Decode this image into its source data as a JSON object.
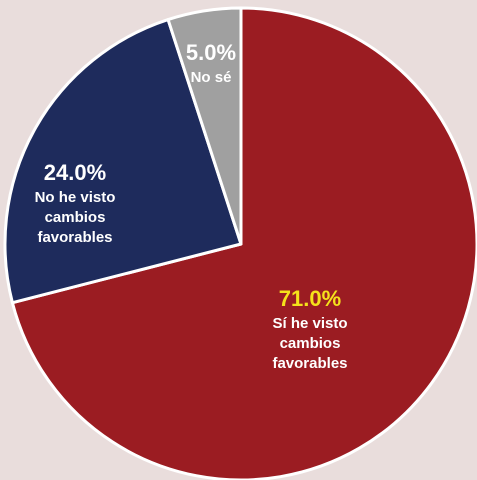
{
  "colors": {
    "background": "#e9dddc",
    "slice_border": "#ffffff",
    "highlight_text": "#f5e11b",
    "label_text": "#ffffff"
  },
  "chart_data": {
    "type": "pie",
    "title": "",
    "start_angle_deg": 0,
    "direction": "clockwise",
    "slices": [
      {
        "key": "si",
        "value": 71.0,
        "value_label": "71.0%",
        "label_lines": [
          "Sí he visto",
          "cambios",
          "favorables"
        ],
        "color": "#9b1c22",
        "value_label_color": "#f5e11b"
      },
      {
        "key": "no",
        "value": 24.0,
        "value_label": "24.0%",
        "label_lines": [
          "No he visto",
          "cambios",
          "favorables"
        ],
        "color": "#1e2b5c",
        "value_label_color": "#ffffff"
      },
      {
        "key": "nose",
        "value": 5.0,
        "value_label": "5.0%",
        "label_lines": [
          "No sé"
        ],
        "color": "#a0a0a0",
        "value_label_color": "#ffffff"
      }
    ]
  }
}
